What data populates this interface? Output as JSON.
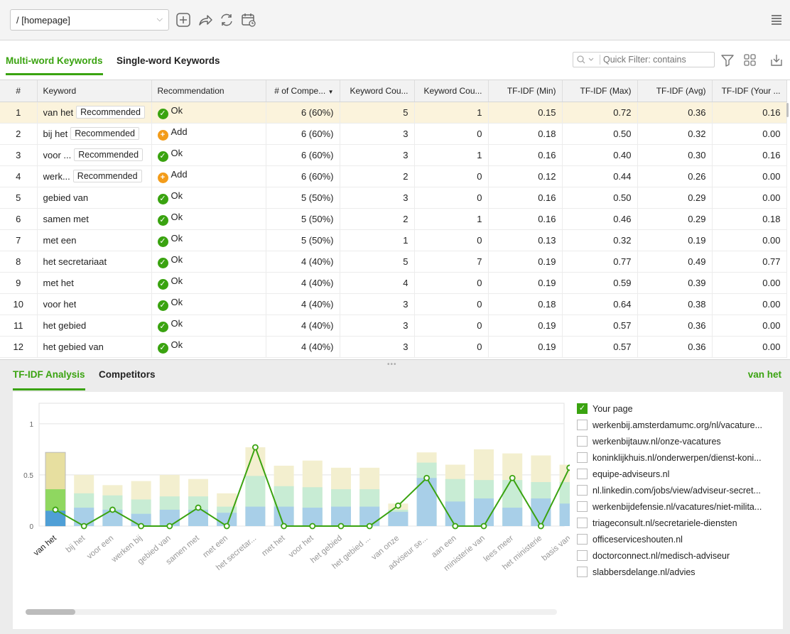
{
  "toolbar": {
    "url_value": "/ [homepage]",
    "icons": [
      "add-page-icon",
      "share-icon",
      "refresh-icon",
      "schedule-icon",
      "hamburger-menu-icon"
    ]
  },
  "tabs": [
    {
      "label": "Multi-word Keywords",
      "active": true
    },
    {
      "label": "Single-word Keywords",
      "active": false
    }
  ],
  "quick_filter": {
    "placeholder": "Quick Filter: contains"
  },
  "table": {
    "columns": [
      "#",
      "Keyword",
      "Recommendation",
      "# of Compe...",
      "Keyword Cou...",
      "Keyword Cou...",
      "TF-IDF (Min)",
      "TF-IDF (Max)",
      "TF-IDF (Avg)",
      "TF-IDF (Your ..."
    ],
    "rows": [
      {
        "n": "1",
        "keyword": "van het",
        "tag": "Recommended",
        "status": "ok",
        "reco": "Ok",
        "comp": "6 (60%)",
        "kc1": "5",
        "kc2": "1",
        "min": "0.15",
        "max": "0.72",
        "avg": "0.36",
        "your": "0.16"
      },
      {
        "n": "2",
        "keyword": "bij het",
        "tag": "Recommended",
        "status": "add",
        "reco": "Add",
        "comp": "6 (60%)",
        "kc1": "3",
        "kc2": "0",
        "min": "0.18",
        "max": "0.50",
        "avg": "0.32",
        "your": "0.00"
      },
      {
        "n": "3",
        "keyword": "voor ...",
        "tag": "Recommended",
        "status": "ok",
        "reco": "Ok",
        "comp": "6 (60%)",
        "kc1": "3",
        "kc2": "1",
        "min": "0.16",
        "max": "0.40",
        "avg": "0.30",
        "your": "0.16"
      },
      {
        "n": "4",
        "keyword": "werk...",
        "tag": "Recommended",
        "status": "add",
        "reco": "Add",
        "comp": "6 (60%)",
        "kc1": "2",
        "kc2": "0",
        "min": "0.12",
        "max": "0.44",
        "avg": "0.26",
        "your": "0.00"
      },
      {
        "n": "5",
        "keyword": "gebied van",
        "tag": "",
        "status": "ok",
        "reco": "Ok",
        "comp": "5 (50%)",
        "kc1": "3",
        "kc2": "0",
        "min": "0.16",
        "max": "0.50",
        "avg": "0.29",
        "your": "0.00"
      },
      {
        "n": "6",
        "keyword": "samen met",
        "tag": "",
        "status": "ok",
        "reco": "Ok",
        "comp": "5 (50%)",
        "kc1": "2",
        "kc2": "1",
        "min": "0.16",
        "max": "0.46",
        "avg": "0.29",
        "your": "0.18"
      },
      {
        "n": "7",
        "keyword": "met een",
        "tag": "",
        "status": "ok",
        "reco": "Ok",
        "comp": "5 (50%)",
        "kc1": "1",
        "kc2": "0",
        "min": "0.13",
        "max": "0.32",
        "avg": "0.19",
        "your": "0.00"
      },
      {
        "n": "8",
        "keyword": "het secretariaat",
        "tag": "",
        "status": "ok",
        "reco": "Ok",
        "comp": "4 (40%)",
        "kc1": "5",
        "kc2": "7",
        "min": "0.19",
        "max": "0.77",
        "avg": "0.49",
        "your": "0.77"
      },
      {
        "n": "9",
        "keyword": "met het",
        "tag": "",
        "status": "ok",
        "reco": "Ok",
        "comp": "4 (40%)",
        "kc1": "4",
        "kc2": "0",
        "min": "0.19",
        "max": "0.59",
        "avg": "0.39",
        "your": "0.00"
      },
      {
        "n": "10",
        "keyword": "voor het",
        "tag": "",
        "status": "ok",
        "reco": "Ok",
        "comp": "4 (40%)",
        "kc1": "3",
        "kc2": "0",
        "min": "0.18",
        "max": "0.64",
        "avg": "0.38",
        "your": "0.00"
      },
      {
        "n": "11",
        "keyword": "het gebied",
        "tag": "",
        "status": "ok",
        "reco": "Ok",
        "comp": "4 (40%)",
        "kc1": "3",
        "kc2": "0",
        "min": "0.19",
        "max": "0.57",
        "avg": "0.36",
        "your": "0.00"
      },
      {
        "n": "12",
        "keyword": "het gebied van",
        "tag": "",
        "status": "ok",
        "reco": "Ok",
        "comp": "4 (40%)",
        "kc1": "3",
        "kc2": "0",
        "min": "0.19",
        "max": "0.57",
        "avg": "0.36",
        "your": "0.00"
      }
    ]
  },
  "bottom_tabs": [
    {
      "label": "TF-IDF Analysis",
      "active": true
    },
    {
      "label": "Competitors",
      "active": false
    }
  ],
  "selected_keyword": "van het",
  "legend": [
    {
      "label": "Your page",
      "checked": true
    },
    {
      "label": "werkenbij.amsterdamumc.org/nl/vacature...",
      "checked": false
    },
    {
      "label": "werkenbijtauw.nl/onze-vacatures",
      "checked": false
    },
    {
      "label": "koninklijkhuis.nl/onderwerpen/dienst-koni...",
      "checked": false
    },
    {
      "label": "equipe-adviseurs.nl",
      "checked": false
    },
    {
      "label": "nl.linkedin.com/jobs/view/adviseur-secret...",
      "checked": false
    },
    {
      "label": "werkenbijdefensie.nl/vacatures/niet-milita...",
      "checked": false
    },
    {
      "label": "triageconsult.nl/secretariele-diensten",
      "checked": false
    },
    {
      "label": "officeserviceshouten.nl",
      "checked": false
    },
    {
      "label": "doctorconnect.nl/medisch-adviseur",
      "checked": false
    },
    {
      "label": "slabbersdelange.nl/advies",
      "checked": false
    }
  ],
  "colors": {
    "accent": "#3aa310",
    "max_band": "#f3efcf",
    "avg_band": "#c8ecd4",
    "min_band": "#a8cfe8",
    "line": "#3aa310"
  },
  "chart_data": {
    "type": "bar",
    "ylim": [
      0,
      1.2
    ],
    "yticks": [
      "0",
      "0.5",
      "1"
    ],
    "categories": [
      "van het",
      "bij het",
      "voor een",
      "werken bij",
      "gebied van",
      "samen met",
      "met een",
      "het secretar...",
      "met het",
      "voor het",
      "het gebied",
      "het gebied ...",
      "van onze",
      "adviseur se...",
      "aan een",
      "ministerie van",
      "lees meer",
      "het ministerie",
      "basis van"
    ],
    "series": [
      {
        "name": "TF-IDF (Max)",
        "values": [
          0.72,
          0.5,
          0.4,
          0.44,
          0.5,
          0.46,
          0.32,
          0.77,
          0.59,
          0.64,
          0.57,
          0.57,
          0.22,
          0.72,
          0.6,
          0.75,
          0.71,
          0.69,
          0.6
        ]
      },
      {
        "name": "TF-IDF (Avg)",
        "values": [
          0.36,
          0.32,
          0.3,
          0.26,
          0.29,
          0.29,
          0.19,
          0.49,
          0.39,
          0.38,
          0.36,
          0.36,
          0.16,
          0.62,
          0.46,
          0.45,
          0.45,
          0.43,
          0.43
        ]
      },
      {
        "name": "TF-IDF (Min)",
        "values": [
          0.15,
          0.18,
          0.16,
          0.12,
          0.16,
          0.16,
          0.13,
          0.19,
          0.19,
          0.18,
          0.19,
          0.19,
          0.14,
          0.47,
          0.24,
          0.27,
          0.18,
          0.27,
          0.22
        ]
      },
      {
        "name": "Your page",
        "values": [
          0.16,
          0.0,
          0.16,
          0.0,
          0.0,
          0.18,
          0.0,
          0.77,
          0.0,
          0.0,
          0.0,
          0.0,
          0.2,
          0.47,
          0.0,
          0.0,
          0.47,
          0.0,
          0.57
        ]
      }
    ]
  }
}
